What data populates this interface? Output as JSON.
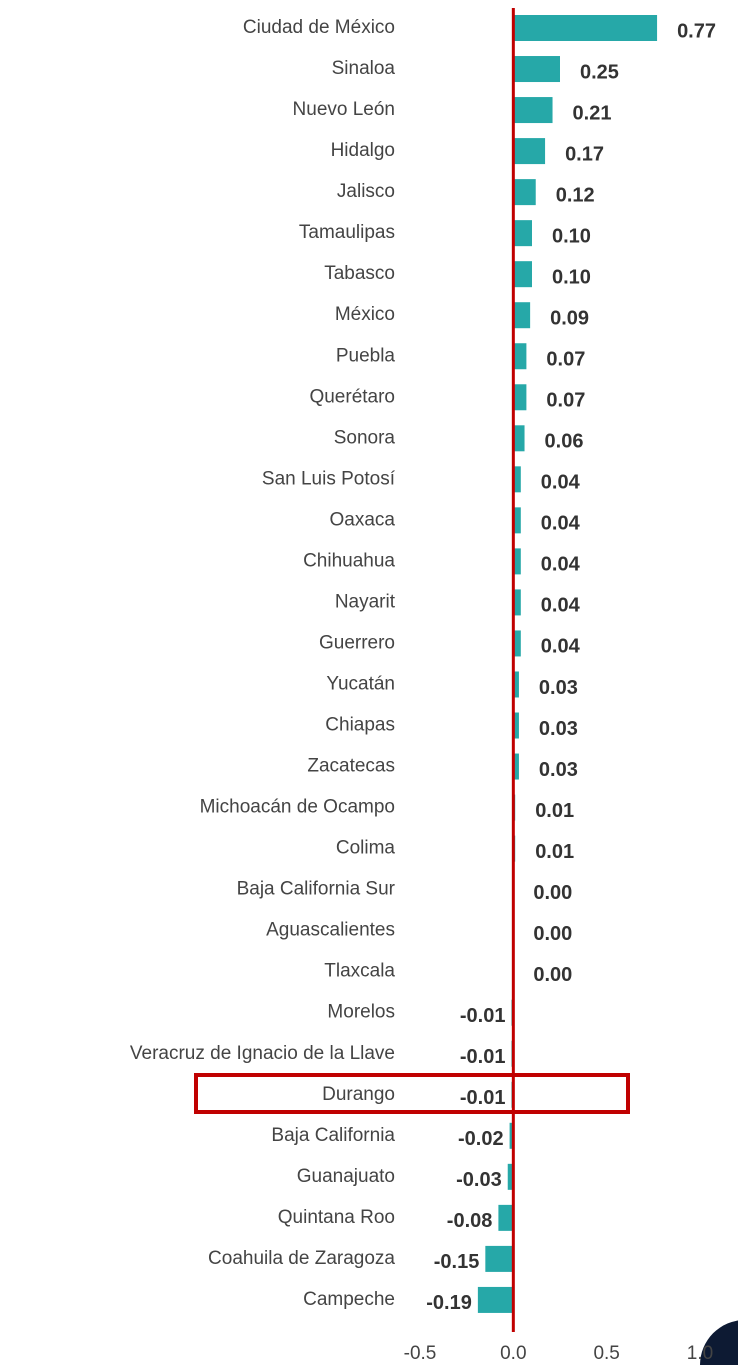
{
  "chart_data": {
    "type": "barh",
    "categories": [
      "Ciudad de México",
      "Sinaloa",
      "Nuevo León",
      "Hidalgo",
      "Jalisco",
      "Tamaulipas",
      "Tabasco",
      "México",
      "Puebla",
      "Querétaro",
      "Sonora",
      "San Luis Potosí",
      "Oaxaca",
      "Chihuahua",
      "Nayarit",
      "Guerrero",
      "Yucatán",
      "Chiapas",
      "Zacatecas",
      "Michoacán de Ocampo",
      "Colima",
      "Baja California Sur",
      "Aguascalientes",
      "Tlaxcala",
      "Morelos",
      "Veracruz de Ignacio de la Llave",
      "Durango",
      "Baja California",
      "Guanajuato",
      "Quintana Roo",
      "Coahuila de Zaragoza",
      "Campeche"
    ],
    "values": [
      0.77,
      0.25,
      0.21,
      0.17,
      0.12,
      0.1,
      0.1,
      0.09,
      0.07,
      0.07,
      0.06,
      0.04,
      0.04,
      0.04,
      0.04,
      0.04,
      0.03,
      0.03,
      0.03,
      0.01,
      0.01,
      0.0,
      0.0,
      0.0,
      -0.01,
      -0.01,
      -0.01,
      -0.02,
      -0.03,
      -0.08,
      -0.15,
      -0.19
    ],
    "value_labels": [
      "0.77",
      "0.25",
      "0.21",
      "0.17",
      "0.12",
      "0.10",
      "0.10",
      "0.09",
      "0.07",
      "0.07",
      "0.06",
      "0.04",
      "0.04",
      "0.04",
      "0.04",
      "0.04",
      "0.03",
      "0.03",
      "0.03",
      "0.01",
      "0.01",
      "0.00",
      "0.00",
      "0.00",
      "-0.01",
      "-0.01",
      "-0.01",
      "-0.02",
      "-0.03",
      "-0.08",
      "-0.15",
      "-0.19"
    ],
    "color": "#26a8a8",
    "xlim": [
      -0.5,
      1.0
    ],
    "xticks": [
      -0.5,
      {
        "value": 0,
        "label": "0.0"
      },
      0.5,
      {
        "value": 1,
        "label": "1.0"
      }
    ],
    "grid": false
  }
}
